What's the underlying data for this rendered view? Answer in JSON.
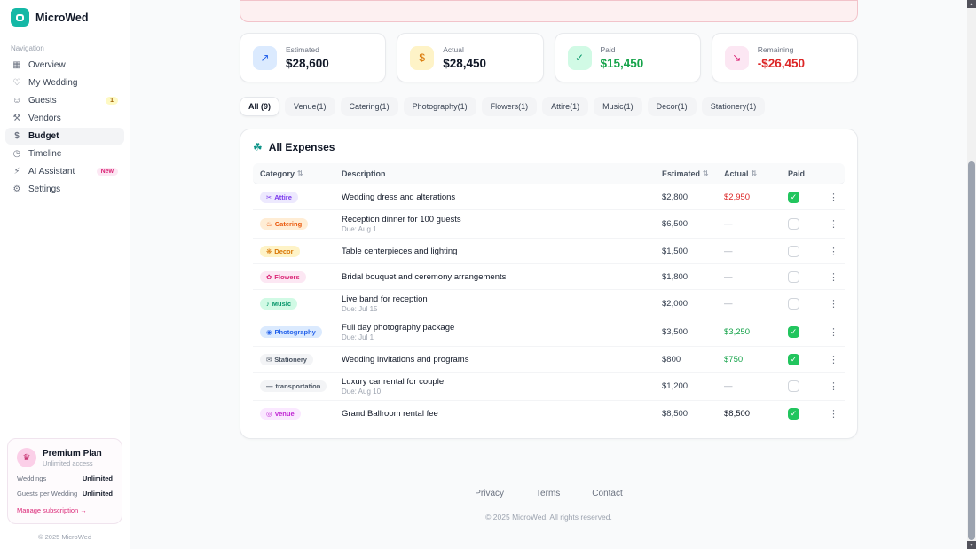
{
  "app": {
    "name": "MicroWed"
  },
  "icons": {
    "sort": "⇅",
    "kebab": "⋮",
    "check": "✓"
  },
  "sidebar": {
    "nav_label": "Navigation",
    "items": [
      {
        "label": "Overview",
        "icon": "overview-icon",
        "glyph": "▦",
        "active": false,
        "badge": "",
        "badge_style": ""
      },
      {
        "label": "My Wedding",
        "icon": "heart-icon",
        "glyph": "♡",
        "active": false,
        "badge": "",
        "badge_style": ""
      },
      {
        "label": "Guests",
        "icon": "guests-icon",
        "glyph": "☺",
        "active": false,
        "badge": "1",
        "badge_style": "yellow"
      },
      {
        "label": "Vendors",
        "icon": "vendors-icon",
        "glyph": "⚒",
        "active": false,
        "badge": "",
        "badge_style": ""
      },
      {
        "label": "Budget",
        "icon": "budget-icon",
        "glyph": "$",
        "active": true,
        "badge": "",
        "badge_style": ""
      },
      {
        "label": "Timeline",
        "icon": "timeline-icon",
        "glyph": "◷",
        "active": false,
        "badge": "",
        "badge_style": ""
      },
      {
        "label": "AI Assistant",
        "icon": "ai-sparkle-icon",
        "glyph": "⚡",
        "active": false,
        "badge": "New",
        "badge_style": "pink"
      },
      {
        "label": "Settings",
        "icon": "gear-icon",
        "glyph": "⚙",
        "active": false,
        "badge": "",
        "badge_style": ""
      }
    ],
    "plan": {
      "title": "Premium Plan",
      "subtitle": "Unlimited access",
      "icon_glyph": "♛",
      "rows": [
        {
          "label": "Weddings",
          "value": "Unlimited"
        },
        {
          "label": "Guests per Wedding",
          "value": "Unlimited"
        }
      ],
      "manage_label": "Manage subscription →"
    },
    "copyright": "© 2025 MicroWed"
  },
  "stats": [
    {
      "label": "Estimated",
      "value": "$28,600",
      "glyph": "↗",
      "icon_name": "trend-up-icon",
      "icon_bg": "#dbeafe",
      "icon_color": "#2563eb",
      "value_color": "#111827"
    },
    {
      "label": "Actual",
      "value": "$28,450",
      "glyph": "$",
      "icon_name": "dollar-icon",
      "icon_bg": "#fef3c7",
      "icon_color": "#d97706",
      "value_color": "#111827"
    },
    {
      "label": "Paid",
      "value": "$15,450",
      "glyph": "✓",
      "icon_name": "check-circle-icon",
      "icon_bg": "#d1fae5",
      "icon_color": "#059669",
      "value_color": "#16a34a"
    },
    {
      "label": "Remaining",
      "value": "-$26,450",
      "glyph": "↘",
      "icon_name": "trend-down-icon",
      "icon_bg": "#fce7f3",
      "icon_color": "#db2777",
      "value_color": "#dc2626"
    }
  ],
  "filters": [
    {
      "label": "All (9)",
      "active": true
    },
    {
      "label": "Venue(1)",
      "active": false
    },
    {
      "label": "Catering(1)",
      "active": false
    },
    {
      "label": "Photography(1)",
      "active": false
    },
    {
      "label": "Flowers(1)",
      "active": false
    },
    {
      "label": "Attire(1)",
      "active": false
    },
    {
      "label": "Music(1)",
      "active": false
    },
    {
      "label": "Decor(1)",
      "active": false
    },
    {
      "label": "Stationery(1)",
      "active": false
    }
  ],
  "expenses": {
    "title": "All Expenses",
    "title_icon_glyph": "☘",
    "columns": {
      "category": "Category",
      "description": "Description",
      "estimated": "Estimated",
      "actual": "Actual",
      "paid": "Paid"
    },
    "rows": [
      {
        "category": "Attire",
        "icon_name": "attire-icon",
        "glyph": "✂",
        "badge_bg": "#ede9fe",
        "badge_color": "#7c3aed",
        "description": "Wedding dress and alterations",
        "due": "",
        "estimated": "$2,800",
        "actual": "$2,950",
        "actual_color": "#dc2626",
        "paid": true
      },
      {
        "category": "Catering",
        "icon_name": "catering-icon",
        "glyph": "♨",
        "badge_bg": "#ffedd5",
        "badge_color": "#ea580c",
        "description": "Reception dinner for 100 guests",
        "due": "Due: Aug 1",
        "estimated": "$6,500",
        "actual": "—",
        "actual_color": "#9ca3af",
        "paid": false
      },
      {
        "category": "Decor",
        "icon_name": "decor-icon",
        "glyph": "❋",
        "badge_bg": "#fef3c7",
        "badge_color": "#d97706",
        "description": "Table centerpieces and lighting",
        "due": "",
        "estimated": "$1,500",
        "actual": "—",
        "actual_color": "#9ca3af",
        "paid": false
      },
      {
        "category": "Flowers",
        "icon_name": "flowers-icon",
        "glyph": "✿",
        "badge_bg": "#fce7f3",
        "badge_color": "#db2777",
        "description": "Bridal bouquet and ceremony arrangements",
        "due": "",
        "estimated": "$1,800",
        "actual": "—",
        "actual_color": "#9ca3af",
        "paid": false
      },
      {
        "category": "Music",
        "icon_name": "music-icon",
        "glyph": "♪",
        "badge_bg": "#d1fae5",
        "badge_color": "#059669",
        "description": "Live band for reception",
        "due": "Due: Jul 15",
        "estimated": "$2,000",
        "actual": "—",
        "actual_color": "#9ca3af",
        "paid": false
      },
      {
        "category": "Photography",
        "icon_name": "camera-icon",
        "glyph": "◉",
        "badge_bg": "#dbeafe",
        "badge_color": "#2563eb",
        "description": "Full day photography package",
        "due": "Due: Jul 1",
        "estimated": "$3,500",
        "actual": "$3,250",
        "actual_color": "#16a34a",
        "paid": true
      },
      {
        "category": "Stationery",
        "icon_name": "stationery-icon",
        "glyph": "✉",
        "badge_bg": "#f3f4f6",
        "badge_color": "#4b5563",
        "description": "Wedding invitations and programs",
        "due": "",
        "estimated": "$800",
        "actual": "$750",
        "actual_color": "#16a34a",
        "paid": true
      },
      {
        "category": "transportation",
        "icon_name": "transportation-icon",
        "glyph": "—",
        "badge_bg": "#f3f4f6",
        "badge_color": "#4b5563",
        "description": "Luxury car rental for couple",
        "due": "Due: Aug 10",
        "estimated": "$1,200",
        "actual": "—",
        "actual_color": "#9ca3af",
        "paid": false
      },
      {
        "category": "Venue",
        "icon_name": "venue-pin-icon",
        "glyph": "◎",
        "badge_bg": "#fae8ff",
        "badge_color": "#c026d3",
        "description": "Grand Ballroom rental fee",
        "due": "",
        "estimated": "$8,500",
        "actual": "$8,500",
        "actual_color": "#111827",
        "paid": true
      }
    ]
  },
  "footer": {
    "links": [
      "Privacy",
      "Terms",
      "Contact"
    ],
    "copyright": "© 2025 MicroWed. All rights reserved."
  }
}
